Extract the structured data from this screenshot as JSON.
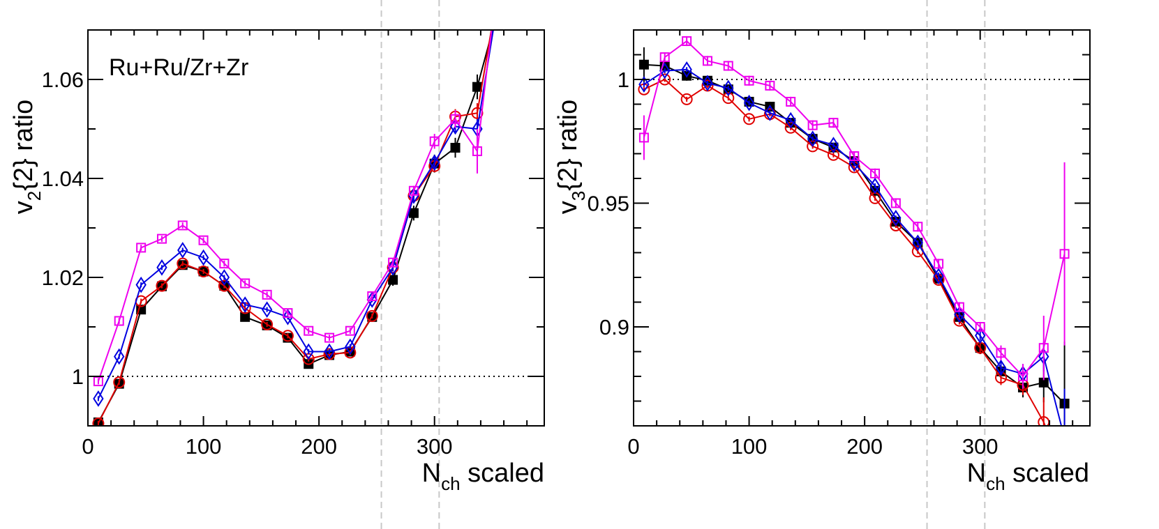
{
  "chart_data": [
    {
      "type": "line",
      "annotation": "Ru+Ru/Zr+Zr",
      "ylabel_main": "v",
      "ylabel_sub": "2",
      "ylabel_rest": "{2} ratio",
      "xlabel_main": "N",
      "xlabel_sub": "ch",
      "xlabel_rest": " scaled",
      "xlim": [
        0,
        395
      ],
      "ylim": [
        0.99,
        1.07
      ],
      "xticks": [
        {
          "value": 0,
          "label": "0"
        },
        {
          "value": 100,
          "label": "100"
        },
        {
          "value": 200,
          "label": "200"
        },
        {
          "value": 300,
          "label": "300"
        }
      ],
      "yticks": [
        {
          "value": 1.0,
          "label": "1"
        },
        {
          "value": 1.02,
          "label": "1.02"
        },
        {
          "value": 1.04,
          "label": "1.04"
        },
        {
          "value": 1.06,
          "label": "1.06"
        }
      ],
      "reference_y": 1.0,
      "vertical_markers_x": [
        254,
        304
      ],
      "series": [
        {
          "color": "#000000",
          "marker": "filled-square",
          "x": [
            9,
            27,
            46,
            64,
            82,
            100,
            118,
            136,
            155,
            173,
            191,
            209,
            227,
            246,
            264,
            282,
            300,
            318,
            337,
            355
          ],
          "y": [
            0.9907,
            0.9985,
            1.0135,
            1.0182,
            1.0225,
            1.0212,
            1.0183,
            1.012,
            1.0103,
            1.0078,
            1.0025,
            1.0043,
            1.005,
            1.012,
            1.0195,
            1.033,
            1.043,
            1.0462,
            1.0585,
            1.074
          ],
          "err": [
            0.0008,
            0.0008,
            0.0008,
            0.0008,
            0.0008,
            0.0008,
            0.0008,
            0.0008,
            0.0008,
            0.0008,
            0.0008,
            0.0008,
            0.0008,
            0.0008,
            0.0012,
            0.0015,
            0.0018,
            0.002,
            0.0025,
            0.003
          ]
        },
        {
          "color": "#e00000",
          "marker": "open-circle",
          "x": [
            9,
            27,
            46,
            64,
            82,
            100,
            118,
            136,
            155,
            173,
            191,
            209,
            227,
            246,
            264,
            282,
            300,
            318,
            337,
            355
          ],
          "y": [
            0.9905,
            0.9988,
            1.0152,
            1.0183,
            1.0228,
            1.0212,
            1.0183,
            1.0138,
            1.0105,
            1.0082,
            1.0035,
            1.0045,
            1.0048,
            1.0122,
            1.022,
            1.0365,
            1.0425,
            1.0525,
            1.0532,
            1.078
          ],
          "err": [
            0.0005,
            0.0005,
            0.0005,
            0.0005,
            0.0005,
            0.0005,
            0.0005,
            0.0005,
            0.0005,
            0.0005,
            0.0005,
            0.0005,
            0.0005,
            0.0005,
            0.0008,
            0.001,
            0.0012,
            0.0015,
            0.002,
            0.0025
          ]
        },
        {
          "color": "#0000e0",
          "marker": "open-diamond",
          "x": [
            9,
            27,
            46,
            64,
            82,
            100,
            118,
            136,
            155,
            173,
            191,
            209,
            227,
            246,
            264,
            282,
            300,
            318,
            337,
            355
          ],
          "y": [
            0.9955,
            1.004,
            1.0185,
            1.022,
            1.0255,
            1.024,
            1.02,
            1.0145,
            1.0135,
            1.012,
            1.005,
            1.005,
            1.006,
            1.0155,
            1.022,
            1.0365,
            1.0432,
            1.0505,
            1.05,
            1.076
          ],
          "err": [
            0.0005,
            0.0005,
            0.0005,
            0.0005,
            0.0005,
            0.0005,
            0.0005,
            0.0005,
            0.0005,
            0.0005,
            0.0005,
            0.0005,
            0.0005,
            0.0005,
            0.0008,
            0.001,
            0.0012,
            0.0015,
            0.002,
            0.0025
          ]
        },
        {
          "color": "#ee00ee",
          "marker": "open-square",
          "x": [
            9,
            27,
            46,
            64,
            82,
            100,
            118,
            136,
            155,
            173,
            191,
            209,
            227,
            246,
            264,
            282,
            300,
            318,
            337,
            355
          ],
          "y": [
            0.999,
            1.0112,
            1.026,
            1.0278,
            1.0305,
            1.0275,
            1.0228,
            1.0188,
            1.0165,
            1.0128,
            1.0092,
            1.0078,
            1.0092,
            1.0162,
            1.023,
            1.0375,
            1.0475,
            1.052,
            1.0455,
            1.081
          ],
          "err": [
            0.0006,
            0.0006,
            0.0006,
            0.0006,
            0.0006,
            0.0006,
            0.0006,
            0.0006,
            0.0006,
            0.0006,
            0.0006,
            0.0006,
            0.0006,
            0.0006,
            0.0008,
            0.001,
            0.0015,
            0.0018,
            0.0045,
            0.003
          ]
        }
      ]
    },
    {
      "type": "line",
      "annotation": "",
      "ylabel_main": "v",
      "ylabel_sub": "3",
      "ylabel_rest": "{2} ratio",
      "xlabel_main": "N",
      "xlabel_sub": "ch",
      "xlabel_rest": " scaled",
      "xlim": [
        0,
        395
      ],
      "ylim": [
        0.86,
        1.02
      ],
      "xticks": [
        {
          "value": 0,
          "label": "0"
        },
        {
          "value": 100,
          "label": "100"
        },
        {
          "value": 200,
          "label": "200"
        },
        {
          "value": 300,
          "label": "300"
        }
      ],
      "yticks": [
        {
          "value": 0.9,
          "label": "0.9"
        },
        {
          "value": 0.95,
          "label": "0.95"
        },
        {
          "value": 1.0,
          "label": "1"
        }
      ],
      "reference_y": 1.0,
      "vertical_markers_x": [
        254,
        304
      ],
      "series": [
        {
          "color": "#000000",
          "marker": "filled-square",
          "x": [
            9,
            27,
            46,
            64,
            82,
            100,
            118,
            136,
            155,
            173,
            191,
            209,
            227,
            246,
            264,
            282,
            300,
            318,
            337,
            355,
            373
          ],
          "y": [
            1.006,
            1.0055,
            1.0015,
            0.9995,
            0.996,
            0.991,
            0.989,
            0.9825,
            0.976,
            0.9725,
            0.967,
            0.955,
            0.9425,
            0.934,
            0.9195,
            0.904,
            0.8915,
            0.882,
            0.8755,
            0.8775,
            0.869
          ],
          "err": [
            0.007,
            0.002,
            0.002,
            0.002,
            0.002,
            0.002,
            0.002,
            0.002,
            0.002,
            0.002,
            0.002,
            0.002,
            0.002,
            0.002,
            0.002,
            0.002,
            0.0025,
            0.003,
            0.004,
            0.008,
            0.025
          ]
        },
        {
          "color": "#e00000",
          "marker": "open-circle",
          "x": [
            9,
            27,
            46,
            64,
            82,
            100,
            118,
            136,
            155,
            173,
            191,
            209,
            227,
            246,
            264,
            282,
            300,
            318,
            337,
            355,
            373
          ],
          "y": [
            0.996,
            1.0,
            0.992,
            0.9975,
            0.9925,
            0.984,
            0.986,
            0.9805,
            0.973,
            0.9695,
            0.9645,
            0.952,
            0.941,
            0.9305,
            0.919,
            0.9025,
            0.8915,
            0.8795,
            0.8765,
            0.8615,
            0.84
          ],
          "err": [
            0.001,
            0.001,
            0.001,
            0.001,
            0.001,
            0.001,
            0.001,
            0.001,
            0.001,
            0.001,
            0.001,
            0.001,
            0.001,
            0.001,
            0.0015,
            0.0015,
            0.002,
            0.003,
            0.004,
            0.01,
            0.02
          ]
        },
        {
          "color": "#0000e0",
          "marker": "open-diamond",
          "x": [
            9,
            27,
            46,
            64,
            82,
            100,
            118,
            136,
            155,
            173,
            191,
            209,
            227,
            246,
            264,
            282,
            300,
            318,
            337,
            355,
            373
          ],
          "y": [
            0.998,
            1.0035,
            1.004,
            0.9985,
            0.9965,
            0.9905,
            0.9865,
            0.9835,
            0.976,
            0.9735,
            0.966,
            0.957,
            0.944,
            0.934,
            0.9205,
            0.905,
            0.8965,
            0.8835,
            0.881,
            0.888,
            0.855
          ],
          "err": [
            0.001,
            0.001,
            0.001,
            0.001,
            0.001,
            0.001,
            0.001,
            0.001,
            0.001,
            0.001,
            0.001,
            0.001,
            0.001,
            0.001,
            0.0015,
            0.0015,
            0.002,
            0.003,
            0.004,
            0.006,
            0.02
          ]
        },
        {
          "color": "#ee00ee",
          "marker": "open-square",
          "x": [
            9,
            27,
            46,
            64,
            82,
            100,
            118,
            136,
            155,
            173,
            191,
            209,
            227,
            246,
            264,
            282,
            300,
            318,
            337,
            355,
            373
          ],
          "y": [
            0.9765,
            1.009,
            1.0155,
            1.0075,
            1.0055,
            0.9995,
            0.9975,
            0.991,
            0.9815,
            0.9825,
            0.969,
            0.962,
            0.95,
            0.9405,
            0.9255,
            0.908,
            0.9,
            0.8895,
            0.88,
            0.8915,
            0.9295
          ],
          "err": [
            0.009,
            0.002,
            0.002,
            0.002,
            0.002,
            0.002,
            0.002,
            0.002,
            0.002,
            0.002,
            0.002,
            0.002,
            0.002,
            0.002,
            0.002,
            0.002,
            0.002,
            0.003,
            0.005,
            0.013,
            0.037
          ]
        }
      ]
    }
  ]
}
